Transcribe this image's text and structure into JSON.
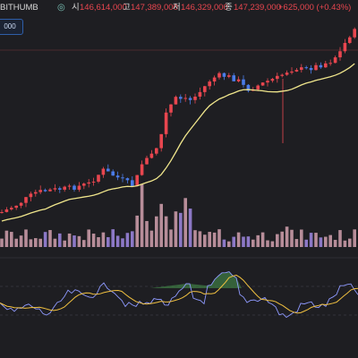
{
  "header": {
    "exchange": "BITHUMB",
    "pin_icon": "pin-icon",
    "open_label": "시",
    "open_value": "146,614,000",
    "high_label": "고",
    "high_value": "147,389,000",
    "low_label": "저",
    "low_value": "146,329,000",
    "close_label": "종",
    "close_value": "147,239,000",
    "change": "+625,000 (+0.43%)"
  },
  "indicator_badge": {
    "text": "000"
  },
  "colors": {
    "background": "#1e1e22",
    "up": "#e8464f",
    "down": "#4a7be8",
    "ma_line": "#f0e68c",
    "volume_up": "#b78d99",
    "volume_down": "#8c78c6",
    "oscillator_line": "#8f9aff",
    "oscillator_signal": "#f0c040",
    "oscillator_fill": "#3f7d45"
  }
}
